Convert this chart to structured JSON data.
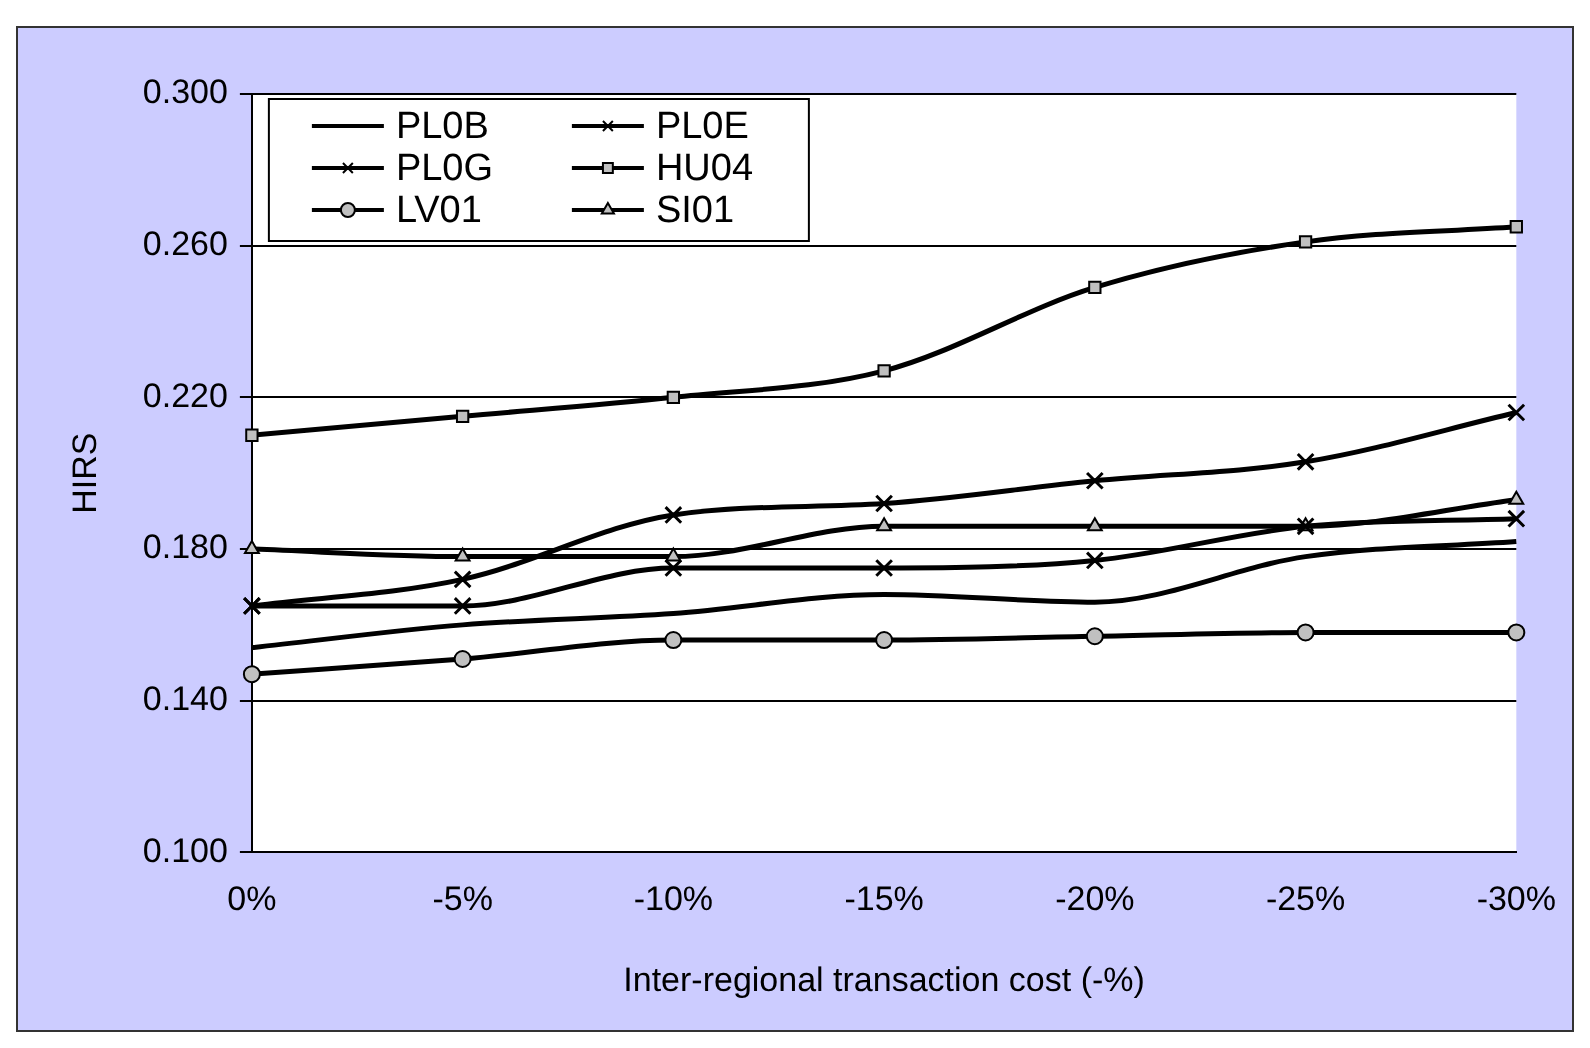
{
  "chart_data": {
    "type": "line",
    "xlabel": "Inter-regional transaction cost (-%)",
    "ylabel": "HIRS",
    "categories": [
      "0%",
      "-5%",
      "-10%",
      "-15%",
      "-20%",
      "-25%",
      "-30%"
    ],
    "series": [
      {
        "name": "PL0B",
        "color": "#000000",
        "marker": "none",
        "values": [
          0.154,
          0.16,
          0.163,
          0.168,
          0.166,
          0.178,
          0.182
        ]
      },
      {
        "name": "PL0E",
        "color": "#000000",
        "marker": "cross",
        "values": [
          0.165,
          0.172,
          0.189,
          0.192,
          0.198,
          0.203,
          0.216
        ]
      },
      {
        "name": "PL0G",
        "color": "#000000",
        "marker": "cross",
        "values": [
          0.165,
          0.165,
          0.175,
          0.175,
          0.177,
          0.186,
          0.188
        ]
      },
      {
        "name": "HU04",
        "color": "#000000",
        "marker": "square",
        "values": [
          0.21,
          0.215,
          0.22,
          0.227,
          0.249,
          0.261,
          0.265
        ]
      },
      {
        "name": "LV01",
        "color": "#000000",
        "marker": "circle",
        "values": [
          0.147,
          0.151,
          0.156,
          0.156,
          0.157,
          0.158,
          0.158
        ]
      },
      {
        "name": "SI01",
        "color": "#000000",
        "marker": "triangle",
        "values": [
          0.18,
          0.178,
          0.178,
          0.186,
          0.186,
          0.186,
          0.193
        ]
      }
    ],
    "ylim": [
      0.1,
      0.3
    ],
    "yticks": [
      {
        "value": 0.1,
        "label": "0.100"
      },
      {
        "value": 0.14,
        "label": "0.140"
      },
      {
        "value": 0.18,
        "label": "0.180"
      },
      {
        "value": 0.22,
        "label": "0.220"
      },
      {
        "value": 0.26,
        "label": "0.260"
      },
      {
        "value": 0.3,
        "label": "0.300"
      }
    ],
    "grid": "y",
    "legend": "top left"
  }
}
